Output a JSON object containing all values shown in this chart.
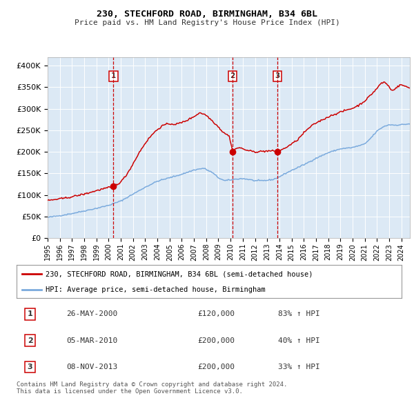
{
  "title": "230, STECHFORD ROAD, BIRMINGHAM, B34 6BL",
  "subtitle": "Price paid vs. HM Land Registry's House Price Index (HPI)",
  "hpi_label": "HPI: Average price, semi-detached house, Birmingham",
  "property_label": "230, STECHFORD ROAD, BIRMINGHAM, B34 6BL (semi-detached house)",
  "footer_line1": "Contains HM Land Registry data © Crown copyright and database right 2024.",
  "footer_line2": "This data is licensed under the Open Government Licence v3.0.",
  "sales": [
    {
      "num": 1,
      "date": "26-MAY-2000",
      "price": 120000,
      "pct": "83%",
      "dir": "↑",
      "x_year": 2000.4
    },
    {
      "num": 2,
      "date": "05-MAR-2010",
      "price": 200000,
      "pct": "40%",
      "dir": "↑",
      "x_year": 2010.17
    },
    {
      "num": 3,
      "date": "08-NOV-2013",
      "price": 200000,
      "pct": "33%",
      "dir": "↑",
      "x_year": 2013.85
    }
  ],
  "ylim": [
    0,
    420000
  ],
  "xlim_start": 1995.0,
  "xlim_end": 2024.7,
  "plot_bg_color": "#dce9f5",
  "outer_bg_color": "#ffffff",
  "red_line_color": "#cc0000",
  "blue_line_color": "#7aaadd",
  "dashed_line_color": "#cc0000",
  "marker_color": "#cc0000",
  "yticks": [
    0,
    50000,
    100000,
    150000,
    200000,
    250000,
    300000,
    350000,
    400000
  ],
  "ytick_labels": [
    "£0",
    "£50K",
    "£100K",
    "£150K",
    "£200K",
    "£250K",
    "£300K",
    "£350K",
    "£400K"
  ],
  "hpi_refs": [
    [
      1995.0,
      48000
    ],
    [
      1996.0,
      52000
    ],
    [
      1997.0,
      57000
    ],
    [
      1998.0,
      63000
    ],
    [
      1999.0,
      69000
    ],
    [
      2000.0,
      76000
    ],
    [
      2001.0,
      86000
    ],
    [
      2002.0,
      102000
    ],
    [
      2003.0,
      118000
    ],
    [
      2004.0,
      132000
    ],
    [
      2005.0,
      140000
    ],
    [
      2006.0,
      148000
    ],
    [
      2007.0,
      158000
    ],
    [
      2007.8,
      162000
    ],
    [
      2008.5,
      152000
    ],
    [
      2009.0,
      140000
    ],
    [
      2009.5,
      133000
    ],
    [
      2010.0,
      135000
    ],
    [
      2010.5,
      137000
    ],
    [
      2011.0,
      138000
    ],
    [
      2011.5,
      136000
    ],
    [
      2012.0,
      133000
    ],
    [
      2012.5,
      133000
    ],
    [
      2013.0,
      134000
    ],
    [
      2013.5,
      136000
    ],
    [
      2014.0,
      142000
    ],
    [
      2014.5,
      150000
    ],
    [
      2015.0,
      157000
    ],
    [
      2016.0,
      170000
    ],
    [
      2017.0,
      185000
    ],
    [
      2018.0,
      198000
    ],
    [
      2019.0,
      207000
    ],
    [
      2020.0,
      210000
    ],
    [
      2021.0,
      218000
    ],
    [
      2021.5,
      232000
    ],
    [
      2022.0,
      248000
    ],
    [
      2022.5,
      258000
    ],
    [
      2023.0,
      263000
    ],
    [
      2023.5,
      262000
    ],
    [
      2024.0,
      263000
    ],
    [
      2024.7,
      265000
    ]
  ],
  "prop_refs": [
    [
      1995.0,
      87000
    ],
    [
      1995.5,
      89000
    ],
    [
      1996.0,
      91000
    ],
    [
      1996.5,
      93000
    ],
    [
      1997.0,
      96000
    ],
    [
      1997.5,
      99000
    ],
    [
      1998.0,
      102000
    ],
    [
      1998.5,
      106000
    ],
    [
      1999.0,
      110000
    ],
    [
      1999.5,
      114000
    ],
    [
      2000.0,
      117000
    ],
    [
      2000.4,
      120000
    ],
    [
      2001.0,
      130000
    ],
    [
      2001.5,
      148000
    ],
    [
      2002.0,
      172000
    ],
    [
      2002.5,
      198000
    ],
    [
      2003.0,
      220000
    ],
    [
      2003.5,
      238000
    ],
    [
      2004.0,
      252000
    ],
    [
      2004.5,
      262000
    ],
    [
      2005.0,
      265000
    ],
    [
      2005.5,
      264000
    ],
    [
      2006.0,
      268000
    ],
    [
      2006.5,
      274000
    ],
    [
      2007.0,
      282000
    ],
    [
      2007.5,
      291000
    ],
    [
      2008.0,
      285000
    ],
    [
      2008.5,
      272000
    ],
    [
      2009.0,
      258000
    ],
    [
      2009.3,
      248000
    ],
    [
      2009.6,
      242000
    ],
    [
      2009.9,
      236000
    ],
    [
      2010.17,
      200000
    ],
    [
      2010.4,
      207000
    ],
    [
      2010.7,
      210000
    ],
    [
      2011.0,
      207000
    ],
    [
      2011.3,
      204000
    ],
    [
      2011.6,
      202000
    ],
    [
      2012.0,
      200000
    ],
    [
      2012.5,
      201000
    ],
    [
      2013.0,
      202000
    ],
    [
      2013.5,
      202000
    ],
    [
      2013.85,
      200000
    ],
    [
      2014.0,
      203000
    ],
    [
      2014.3,
      206000
    ],
    [
      2015.0,
      218000
    ],
    [
      2015.5,
      228000
    ],
    [
      2016.0,
      244000
    ],
    [
      2016.5,
      257000
    ],
    [
      2017.0,
      267000
    ],
    [
      2017.5,
      274000
    ],
    [
      2018.0,
      281000
    ],
    [
      2018.5,
      287000
    ],
    [
      2019.0,
      292000
    ],
    [
      2019.5,
      297000
    ],
    [
      2020.0,
      301000
    ],
    [
      2020.5,
      308000
    ],
    [
      2021.0,
      318000
    ],
    [
      2021.5,
      332000
    ],
    [
      2022.0,
      347000
    ],
    [
      2022.3,
      358000
    ],
    [
      2022.6,
      362000
    ],
    [
      2022.9,
      355000
    ],
    [
      2023.2,
      342000
    ],
    [
      2023.5,
      347000
    ],
    [
      2023.8,
      353000
    ],
    [
      2024.0,
      356000
    ],
    [
      2024.3,
      352000
    ],
    [
      2024.7,
      348000
    ]
  ]
}
